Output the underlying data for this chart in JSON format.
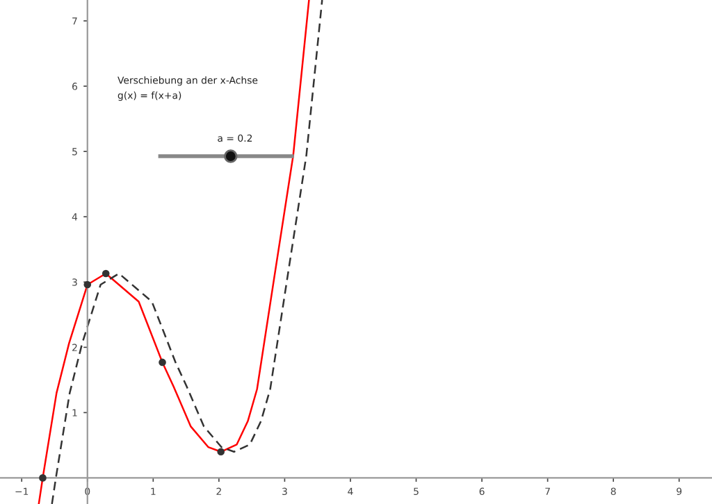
{
  "chart_data": {
    "type": "line",
    "annotations": [
      "Verschiebung an der x-Achse",
      "g(x) = f(x+a)",
      "a = 0.2"
    ],
    "xlim": [
      -1.33,
      9.5
    ],
    "ylim": [
      -0.4,
      7.32
    ],
    "xticks": [
      {
        "value": -1,
        "label": "−1"
      },
      0,
      1,
      2,
      3,
      4,
      5,
      6,
      7,
      8,
      9
    ],
    "yticks": [
      1,
      2,
      3,
      4,
      5,
      6,
      7
    ],
    "grid": false,
    "series": [
      {
        "color": "#ff0000",
        "line_style": "solid",
        "x": [
          -0.74,
          -0.68,
          -0.47,
          -0.28,
          0,
          0.28,
          0.78,
          1.14,
          1.31,
          1.57,
          1.84,
          2.03,
          2.27,
          2.44,
          2.58,
          2.84,
          3.13,
          3.37
        ],
        "values": [
          -0.4,
          0,
          1.3,
          2.06,
          2.96,
          3.13,
          2.7,
          1.77,
          1.4,
          0.79,
          0.47,
          0.4,
          0.51,
          0.87,
          1.36,
          3.06,
          4.94,
          7.32
        ]
      },
      {
        "color": "#333333",
        "line_style": "dashed",
        "x": [
          -0.54,
          -0.48,
          -0.27,
          -0.08,
          0.2,
          0.48,
          0.98,
          1.34,
          1.51,
          1.77,
          2.04,
          2.23,
          2.47,
          2.64,
          2.78,
          3.04,
          3.33,
          3.57
        ],
        "values": [
          -0.4,
          0,
          1.3,
          2.06,
          2.96,
          3.13,
          2.7,
          1.77,
          1.4,
          0.79,
          0.47,
          0.4,
          0.51,
          0.87,
          1.36,
          3.06,
          4.94,
          7.32
        ]
      },
      {
        "type": "scatter",
        "marker": "circle",
        "color": "#333333",
        "x": [
          -0.68,
          0,
          0.28,
          1.14,
          2.03
        ],
        "values": [
          0,
          2.96,
          3.13,
          1.77,
          0.4
        ]
      }
    ]
  }
}
